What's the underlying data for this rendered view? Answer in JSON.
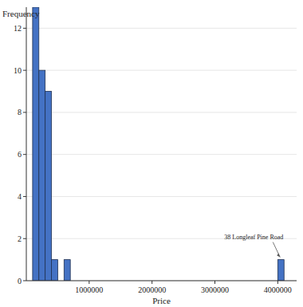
{
  "chart_data": {
    "type": "histogram",
    "x_label": "Price",
    "y_label": "Frequency",
    "annotation": "38 Longleaf Pine Road",
    "bins": [
      100000,
      200000,
      300000,
      400000,
      500000,
      600000,
      700000,
      800000,
      900000,
      1000000,
      1100000,
      1200000,
      1300000,
      1400000,
      1500000,
      1600000,
      1700000,
      1800000,
      1900000,
      2000000,
      2100000,
      2200000,
      2300000,
      2400000,
      2500000,
      2600000,
      2700000,
      2800000,
      2900000,
      3000000,
      3100000,
      3200000,
      3300000,
      3400000,
      3500000,
      3600000,
      3700000,
      3800000,
      3900000,
      4000000,
      4100000
    ],
    "values": [
      13,
      10,
      9,
      1,
      0,
      1,
      0,
      0,
      0,
      0,
      0,
      0,
      0,
      0,
      0,
      0,
      0,
      0,
      0,
      0,
      0,
      0,
      0,
      0,
      0,
      0,
      0,
      0,
      0,
      0,
      0,
      0,
      0,
      0,
      0,
      0,
      0,
      0,
      0,
      1
    ],
    "color": "#4472c4",
    "xlim": [
      0,
      4300000
    ],
    "xticks": [
      1000000,
      2000000,
      3000000,
      4000000
    ],
    "ylim": [
      0,
      13
    ],
    "yticks": [
      0,
      2,
      4,
      6,
      8,
      10,
      12
    ],
    "grid": true
  }
}
